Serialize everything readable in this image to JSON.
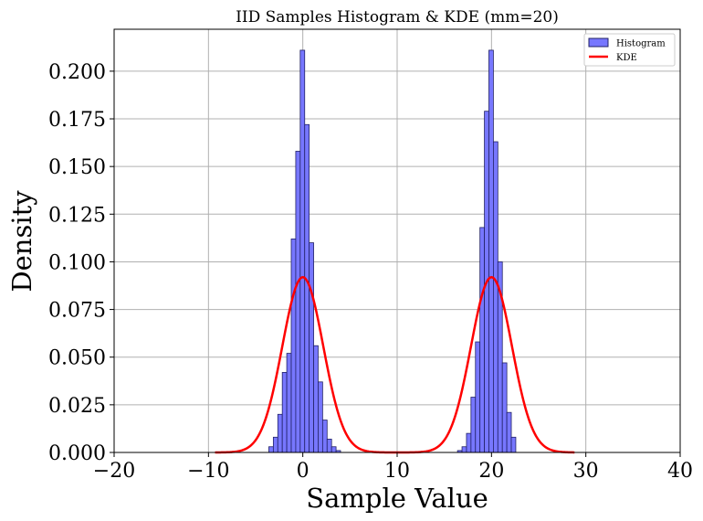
{
  "chart_data": {
    "type": "bar",
    "title": "IID Samples Histogram & KDE (mm=20)",
    "xlabel": "Sample Value",
    "ylabel": "Density",
    "xlim": [
      -20,
      40
    ],
    "ylim": [
      0,
      0.222
    ],
    "grid": true,
    "legend_position": "top-right",
    "x_ticks": [
      -20,
      -10,
      0,
      10,
      20,
      30,
      40
    ],
    "x_tick_labels": [
      "−20",
      "−10",
      "0",
      "10",
      "20",
      "30",
      "40"
    ],
    "y_ticks": [
      0,
      0.025,
      0.05,
      0.075,
      0.1,
      0.125,
      0.15,
      0.175,
      0.2
    ],
    "y_tick_labels": [
      "0.000",
      "0.025",
      "0.050",
      "0.075",
      "0.100",
      "0.125",
      "0.150",
      "0.175",
      "0.200"
    ],
    "histogram": {
      "name": "Histogram",
      "color": "#7777ff",
      "edge_color": "#222266",
      "bin_width": 0.475,
      "bins": [
        {
          "x0": -3.6,
          "h": 0.003
        },
        {
          "x0": -3.125,
          "h": 0.008
        },
        {
          "x0": -2.65,
          "h": 0.02
        },
        {
          "x0": -2.175,
          "h": 0.042
        },
        {
          "x0": -1.7,
          "h": 0.052
        },
        {
          "x0": -1.225,
          "h": 0.112
        },
        {
          "x0": -0.75,
          "h": 0.158
        },
        {
          "x0": -0.275,
          "h": 0.211
        },
        {
          "x0": 0.2,
          "h": 0.172
        },
        {
          "x0": 0.675,
          "h": 0.11
        },
        {
          "x0": 1.15,
          "h": 0.056
        },
        {
          "x0": 1.625,
          "h": 0.037
        },
        {
          "x0": 2.1,
          "h": 0.017
        },
        {
          "x0": 2.575,
          "h": 0.007
        },
        {
          "x0": 3.05,
          "h": 0.003
        },
        {
          "x0": 3.525,
          "h": 0.001
        },
        {
          "x0": 16.4,
          "h": 0.001
        },
        {
          "x0": 16.875,
          "h": 0.003
        },
        {
          "x0": 17.35,
          "h": 0.01
        },
        {
          "x0": 17.825,
          "h": 0.029
        },
        {
          "x0": 18.3,
          "h": 0.058
        },
        {
          "x0": 18.775,
          "h": 0.118
        },
        {
          "x0": 19.25,
          "h": 0.179
        },
        {
          "x0": 19.725,
          "h": 0.211
        },
        {
          "x0": 20.2,
          "h": 0.163
        },
        {
          "x0": 20.675,
          "h": 0.1
        },
        {
          "x0": 21.15,
          "h": 0.047
        },
        {
          "x0": 21.625,
          "h": 0.021
        },
        {
          "x0": 22.1,
          "h": 0.008
        }
      ]
    },
    "kde": {
      "name": "KDE",
      "color": "#ff0000",
      "x_range": [
        -9.3,
        28.8
      ],
      "components": [
        {
          "mean": 0.0,
          "sigma": 2.17,
          "weight": 0.5
        },
        {
          "mean": 20.0,
          "sigma": 2.17,
          "weight": 0.5
        }
      ]
    }
  }
}
